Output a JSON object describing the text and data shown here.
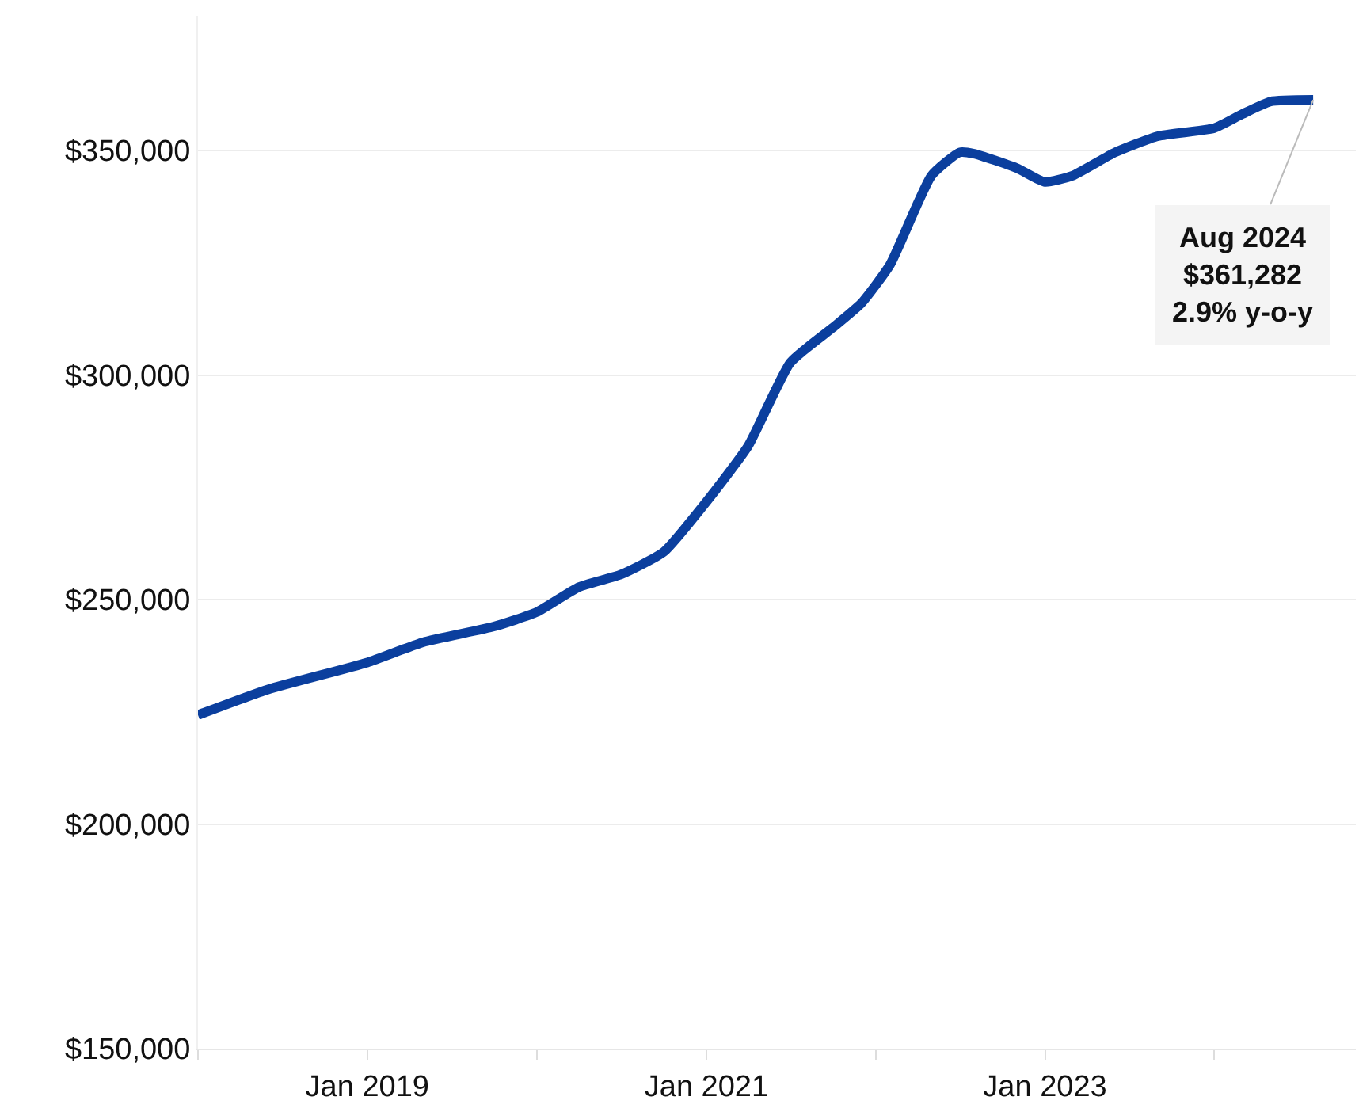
{
  "chart_data": {
    "type": "line",
    "x": [
      "2018-01",
      "2018-06",
      "2019-01",
      "2019-05",
      "2019-10",
      "2020-01",
      "2020-04",
      "2020-07",
      "2020-10",
      "2021-01",
      "2021-04",
      "2021-07",
      "2021-10",
      "2021-12",
      "2022-02",
      "2022-05",
      "2022-07",
      "2022-08",
      "2022-11",
      "2023-01",
      "2023-03",
      "2023-06",
      "2023-09",
      "2024-01",
      "2024-03",
      "2024-05",
      "2024-08"
    ],
    "series": [
      {
        "color": "#0b3f9e",
        "values": [
          224300,
          230000,
          236000,
          240500,
          244000,
          247200,
          252800,
          255600,
          260600,
          271800,
          284200,
          302800,
          310600,
          316000,
          324600,
          344400,
          349600,
          349300,
          346100,
          343000,
          344400,
          349600,
          353200,
          355000,
          358100,
          360900,
          361282
        ]
      }
    ],
    "xlim": [
      "2018-01",
      "2024-11"
    ],
    "xticks": [
      {
        "value": "2018-01",
        "label": null
      },
      {
        "value": "2019-01",
        "label": "Jan 2019"
      },
      {
        "value": "2020-01",
        "label": null
      },
      {
        "value": "2021-01",
        "label": "Jan 2021"
      },
      {
        "value": "2022-01",
        "label": null
      },
      {
        "value": "2023-01",
        "label": "Jan 2023"
      },
      {
        "value": "2024-01",
        "label": null
      }
    ],
    "ylim": [
      150000,
      380000
    ],
    "yticks": [
      {
        "value": 150000,
        "label": "$150,000"
      },
      {
        "value": 200000,
        "label": "$200,000"
      },
      {
        "value": 250000,
        "label": "$250,000"
      },
      {
        "value": 300000,
        "label": "$300,000"
      },
      {
        "value": 350000,
        "label": "$350,000"
      }
    ],
    "grid": "y",
    "legend": false,
    "marker": "none",
    "line_style": "solid",
    "annotations": [
      {
        "text": "Aug 2024\n$361,282\n2.9% y-o-y",
        "x": "2024-08",
        "y": 361282
      }
    ]
  }
}
